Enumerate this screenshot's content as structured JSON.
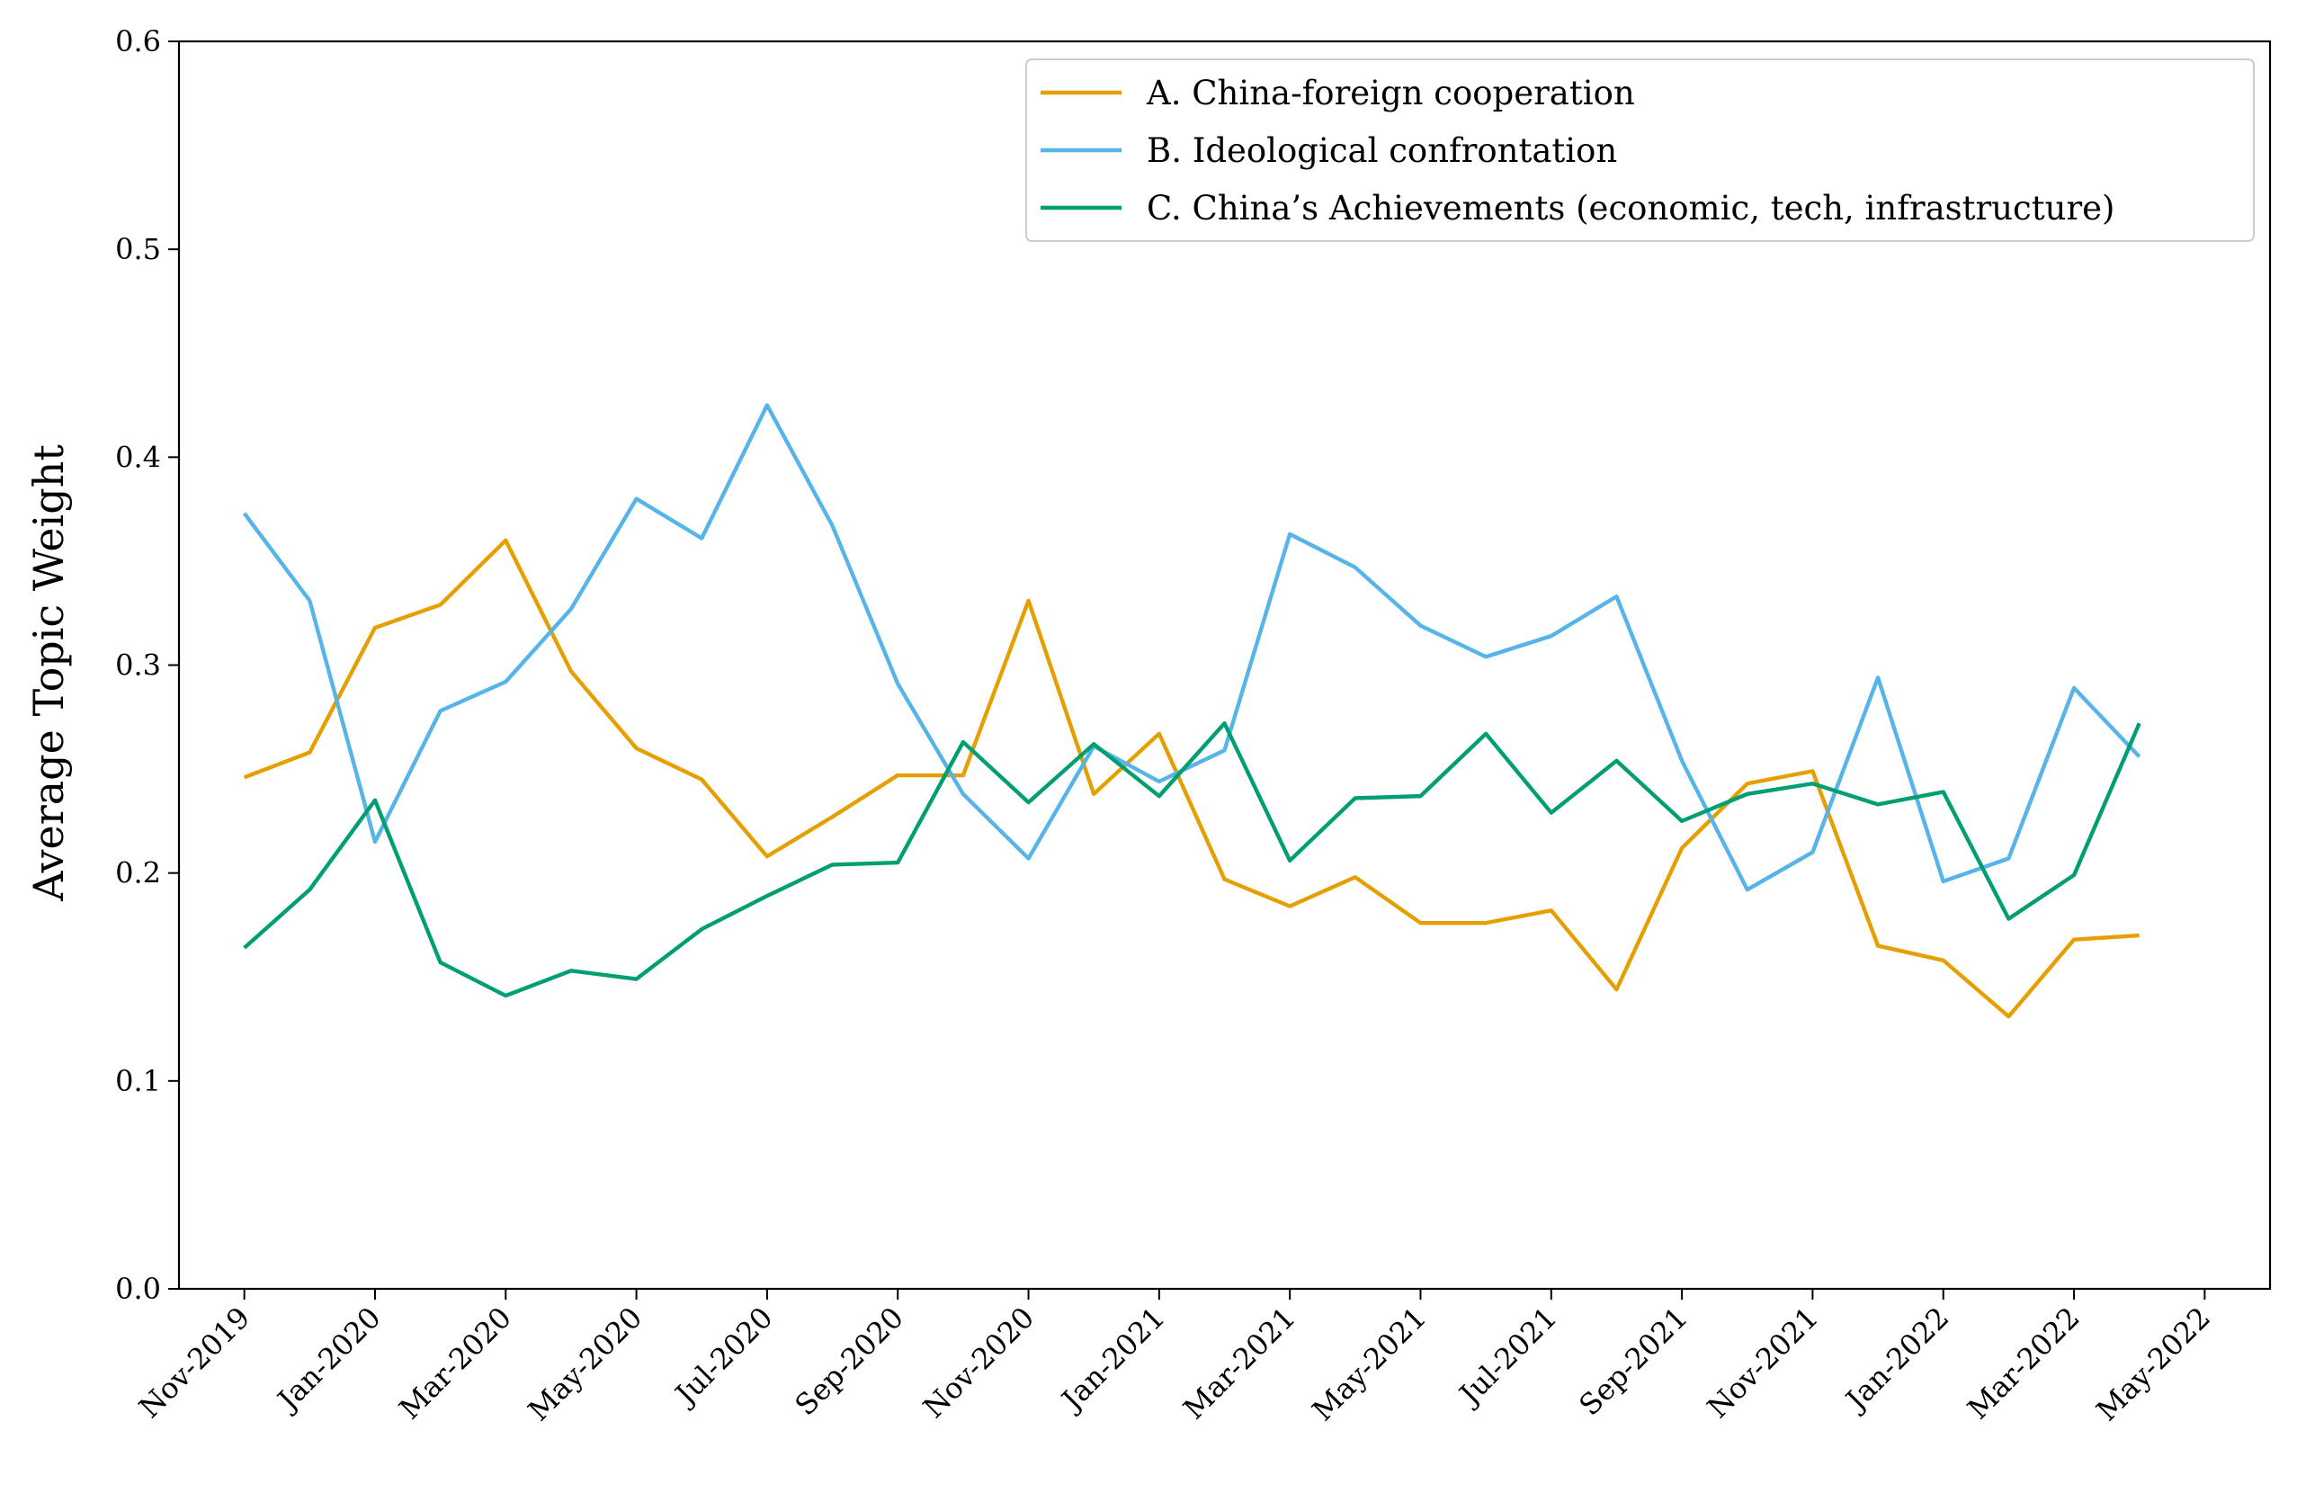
{
  "chart_data": {
    "type": "line",
    "title": "",
    "xlabel": "",
    "ylabel": "Average Topic Weight",
    "ylim": [
      0.0,
      0.6
    ],
    "yticks": [
      "0.0",
      "0.1",
      "0.2",
      "0.3",
      "0.4",
      "0.5",
      "0.6"
    ],
    "xlim": [
      "2019-10",
      "2022-06"
    ],
    "xtick_labels": [
      "Nov-2019",
      "Jan-2020",
      "Mar-2020",
      "May-2020",
      "Jul-2020",
      "Sep-2020",
      "Nov-2020",
      "Jan-2021",
      "Mar-2021",
      "May-2021",
      "Jul-2021",
      "Sep-2021",
      "Nov-2021",
      "Jan-2022",
      "Mar-2022",
      "May-2022"
    ],
    "x": [
      "2019-11",
      "2019-12",
      "2020-01",
      "2020-02",
      "2020-03",
      "2020-04",
      "2020-05",
      "2020-06",
      "2020-07",
      "2020-08",
      "2020-09",
      "2020-10",
      "2020-11",
      "2020-12",
      "2021-01",
      "2021-02",
      "2021-03",
      "2021-04",
      "2021-05",
      "2021-06",
      "2021-07",
      "2021-08",
      "2021-09",
      "2021-10",
      "2021-11",
      "2021-12",
      "2022-01",
      "2022-02",
      "2022-03",
      "2022-04"
    ],
    "grid": false,
    "legend_position": "top-right",
    "series": [
      {
        "name": "A. China-foreign cooperation",
        "color": "#E69F00",
        "values": [
          0.246,
          0.258,
          0.318,
          0.329,
          0.36,
          0.297,
          0.26,
          0.245,
          0.208,
          0.227,
          0.247,
          0.247,
          0.331,
          0.238,
          0.267,
          0.197,
          0.184,
          0.198,
          0.176,
          0.176,
          0.182,
          0.144,
          0.212,
          0.243,
          0.249,
          0.165,
          0.158,
          0.131,
          0.168,
          0.17
        ]
      },
      {
        "name": "B. Ideological confrontation",
        "color": "#56B4E9",
        "values": [
          0.373,
          0.331,
          0.215,
          0.278,
          0.292,
          0.327,
          0.38,
          0.361,
          0.425,
          0.367,
          0.291,
          0.238,
          0.207,
          0.261,
          0.244,
          0.259,
          0.363,
          0.347,
          0.319,
          0.304,
          0.314,
          0.333,
          0.254,
          0.192,
          0.21,
          0.294,
          0.196,
          0.207,
          0.289,
          0.256
        ]
      },
      {
        "name": "C. China’s Achievements (economic, tech, infrastructure)",
        "color": "#009E73",
        "values": [
          0.164,
          0.192,
          0.235,
          0.157,
          0.141,
          0.153,
          0.149,
          0.173,
          0.189,
          0.204,
          0.205,
          0.263,
          0.234,
          0.262,
          0.237,
          0.272,
          0.206,
          0.236,
          0.237,
          0.267,
          0.229,
          0.254,
          0.225,
          0.238,
          0.243,
          0.233,
          0.239,
          0.178,
          0.199,
          0.272
        ]
      }
    ]
  }
}
